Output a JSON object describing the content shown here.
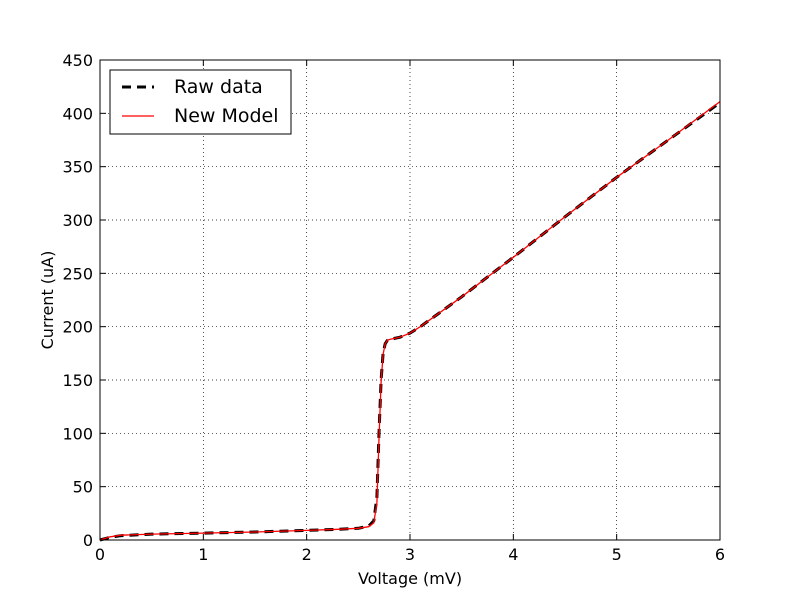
{
  "chart_data": {
    "type": "line",
    "title": "",
    "xlabel": "Voltage (mV)",
    "ylabel": "Current (uA)",
    "xlim": [
      0,
      6
    ],
    "ylim": [
      0,
      450
    ],
    "xticks": [
      0,
      1,
      2,
      3,
      4,
      5,
      6
    ],
    "yticks": [
      0,
      50,
      100,
      150,
      200,
      250,
      300,
      350,
      400,
      450
    ],
    "grid": true,
    "legend_position": "top-left",
    "series": [
      {
        "name": "Raw data",
        "color": "#000000",
        "style": "dashed",
        "x": [
          0,
          0.1,
          0.2,
          0.5,
          1.0,
          1.5,
          2.0,
          2.3,
          2.5,
          2.6,
          2.65,
          2.68,
          2.7,
          2.72,
          2.74,
          2.76,
          2.78,
          2.8,
          2.85,
          2.9,
          3.0,
          3.1,
          3.2,
          3.5,
          4.0,
          4.5,
          5.0,
          5.5,
          6.0
        ],
        "y": [
          0,
          2.5,
          4,
          5.5,
          6.5,
          7.5,
          9,
          10,
          11,
          13,
          18,
          40,
          100,
          150,
          175,
          184,
          187,
          188,
          189,
          190,
          194,
          200,
          207,
          228,
          265,
          303,
          340,
          375,
          410
        ]
      },
      {
        "name": "New Model",
        "color": "#ff0000",
        "style": "solid",
        "x": [
          0,
          0.1,
          0.2,
          0.5,
          1.0,
          1.5,
          2.0,
          2.3,
          2.5,
          2.6,
          2.65,
          2.68,
          2.7,
          2.72,
          2.74,
          2.76,
          2.78,
          2.8,
          2.85,
          2.9,
          3.0,
          3.1,
          3.2,
          3.5,
          4.0,
          4.5,
          5.0,
          5.5,
          6.0
        ],
        "y": [
          0,
          3,
          4.5,
          5.5,
          6.5,
          7.5,
          9,
          10,
          11,
          12.5,
          16,
          35,
          95,
          148,
          174,
          184,
          187,
          188,
          189,
          190,
          194,
          200,
          207,
          228,
          265,
          303,
          340,
          375,
          411
        ]
      }
    ]
  }
}
